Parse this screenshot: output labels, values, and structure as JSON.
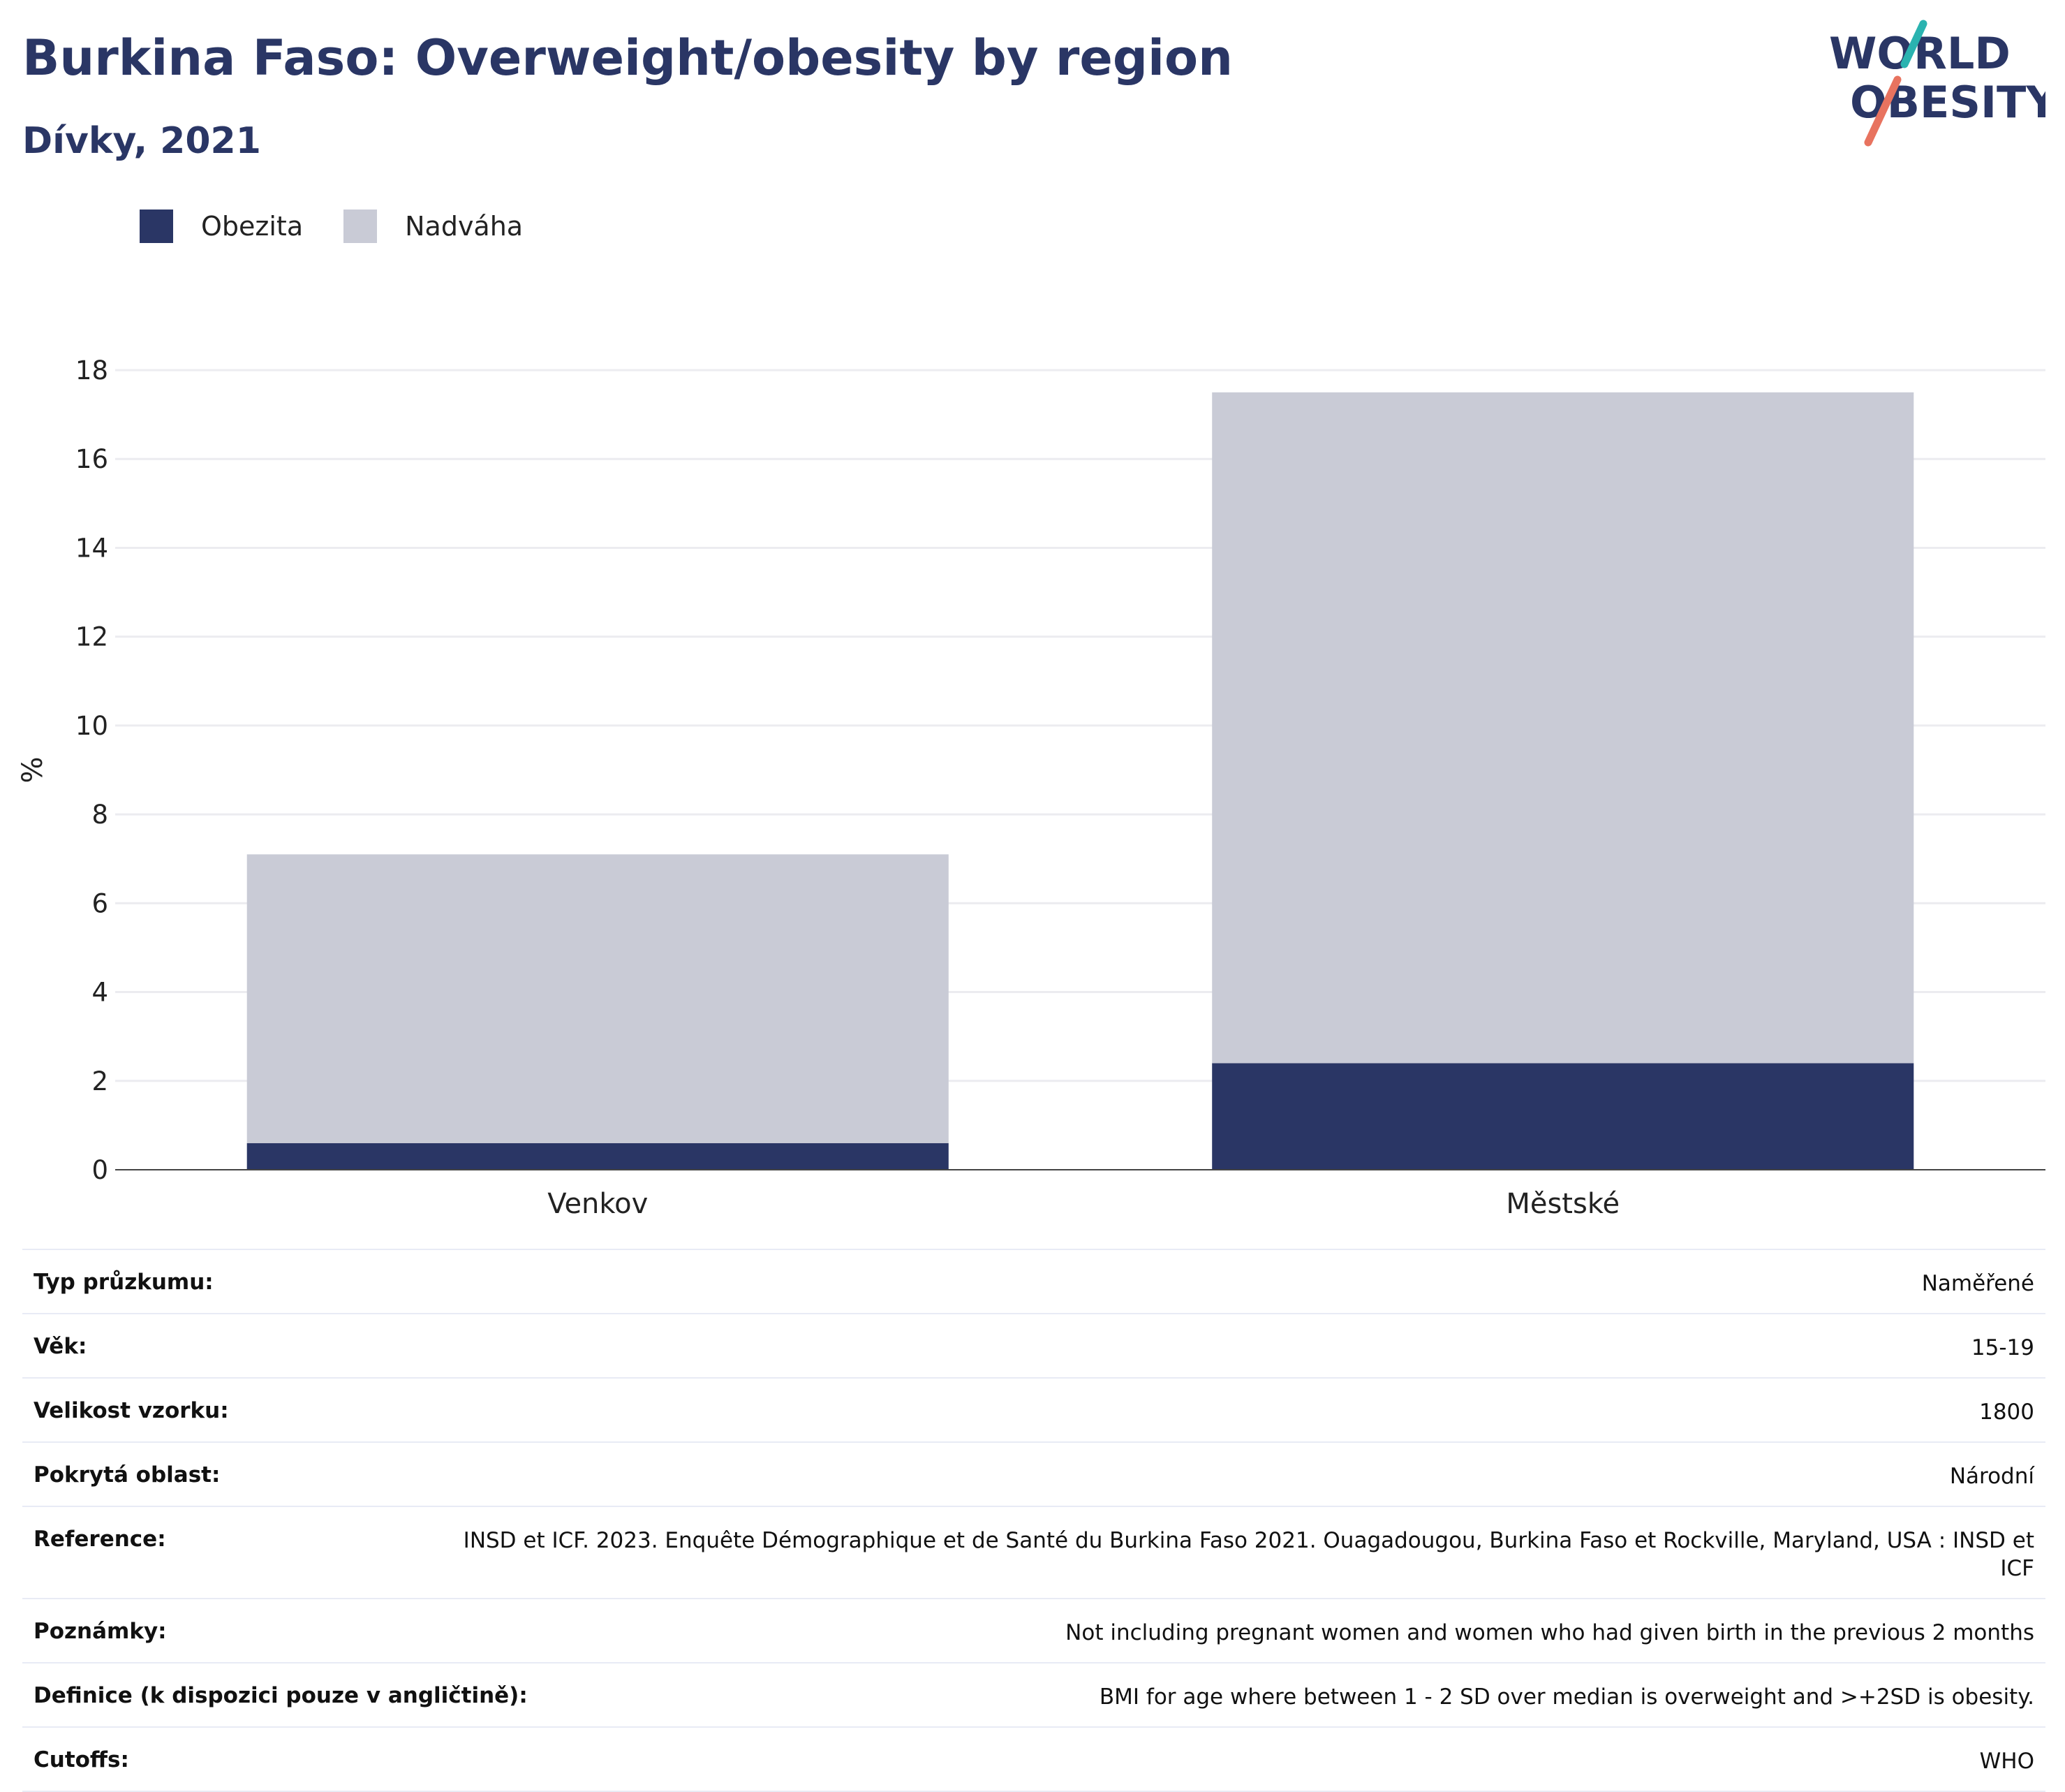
{
  "header": {
    "title": "Burkina Faso: Overweight/obesity by region",
    "subtitle": "Dívky, 2021"
  },
  "logo": {
    "line1": "WORLD",
    "line2": "OBESITY"
  },
  "legend": {
    "obesity_label": "Obezita",
    "overweight_label": "Nadváha"
  },
  "colors": {
    "obesity": "#2a3665",
    "overweight": "#c9cbd6",
    "title": "#2a3665",
    "logo_teal": "#2ab3b0",
    "logo_coral": "#e8735f"
  },
  "chart_data": {
    "type": "bar",
    "stacked": true,
    "categories": [
      "Venkov",
      "Městské"
    ],
    "series": [
      {
        "name": "Obezita",
        "values": [
          0.6,
          2.4
        ]
      },
      {
        "name": "Nadváha",
        "values": [
          6.5,
          15.1
        ]
      }
    ],
    "totals": [
      7.1,
      17.5
    ],
    "ylabel": "%",
    "ylim": [
      0,
      18
    ],
    "yticks": [
      0,
      2,
      4,
      6,
      8,
      10,
      12,
      14,
      16,
      18
    ],
    "grid": true,
    "legend_position": "top-left"
  },
  "info": {
    "rows": [
      {
        "key": "Typ průzkumu:",
        "value": "Naměřené"
      },
      {
        "key": "Věk:",
        "value": "15-19"
      },
      {
        "key": "Velikost vzorku:",
        "value": "1800"
      },
      {
        "key": "Pokrytá oblast:",
        "value": "Národní"
      },
      {
        "key": "Reference:",
        "value": "INSD et ICF. 2023. Enquête Démographique et de Santé du Burkina Faso 2021. Ouagadougou, Burkina Faso et Rockville, Maryland, USA : INSD et ICF"
      },
      {
        "key": "Poznámky:",
        "value": "Not including pregnant women and women who had given birth in the previous 2 months"
      },
      {
        "key": "Definice (k dispozici pouze v angličtině):",
        "value": "BMI for age where between 1 - 2 SD over median is overweight and >+2SD is obesity."
      },
      {
        "key": "Cutoffs:",
        "value": "WHO"
      }
    ]
  }
}
